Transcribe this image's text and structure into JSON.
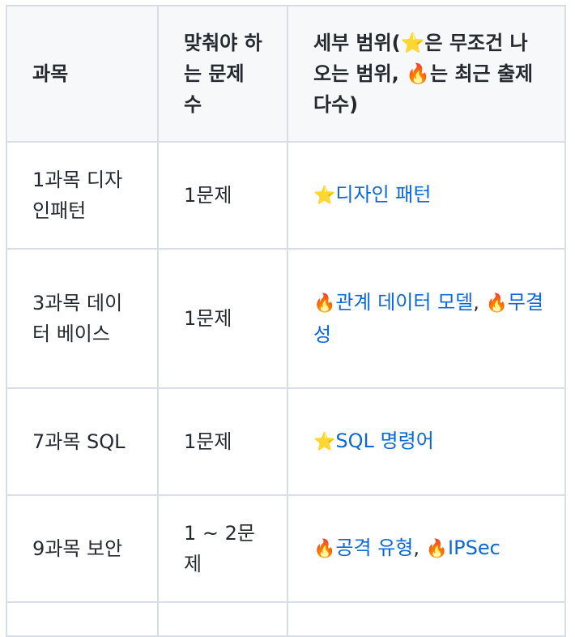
{
  "table": {
    "headers": [
      "과목",
      "맞춰야 하는 문제 수",
      "세부 범위(⭐은 무조건 나오는 범위, 🔥는 최근 출제 다수)"
    ],
    "rows": [
      {
        "subject": "1과목 디자인패턴",
        "count": "1문제",
        "detail": [
          {
            "icon": "⭐",
            "text": "디자인 패턴",
            "link": true
          }
        ]
      },
      {
        "subject": "3과목 데이터 베이스",
        "count": "1문제",
        "detail": [
          {
            "icon": "🔥",
            "text": "관계 데이터 모델",
            "link": true
          },
          {
            "sep": ", "
          },
          {
            "icon": "🔥",
            "text": "무결성",
            "link": true
          }
        ]
      },
      {
        "subject": "7과목 SQL",
        "count": "1문제",
        "detail": [
          {
            "icon": "⭐",
            "text": "SQL 명령어",
            "link": true
          }
        ]
      },
      {
        "subject": "9과목 보안",
        "count": "1 ~ 2문제",
        "detail": [
          {
            "icon": "🔥",
            "text": "공격 유형",
            "link": true
          },
          {
            "sep": ", "
          },
          {
            "icon": "🔥",
            "text": "IPSec",
            "link": true
          }
        ]
      }
    ]
  },
  "colors": {
    "link": "#0969da",
    "header_bg": "#f6f8fa",
    "border": "#d8dee4",
    "text": "#24292f"
  }
}
